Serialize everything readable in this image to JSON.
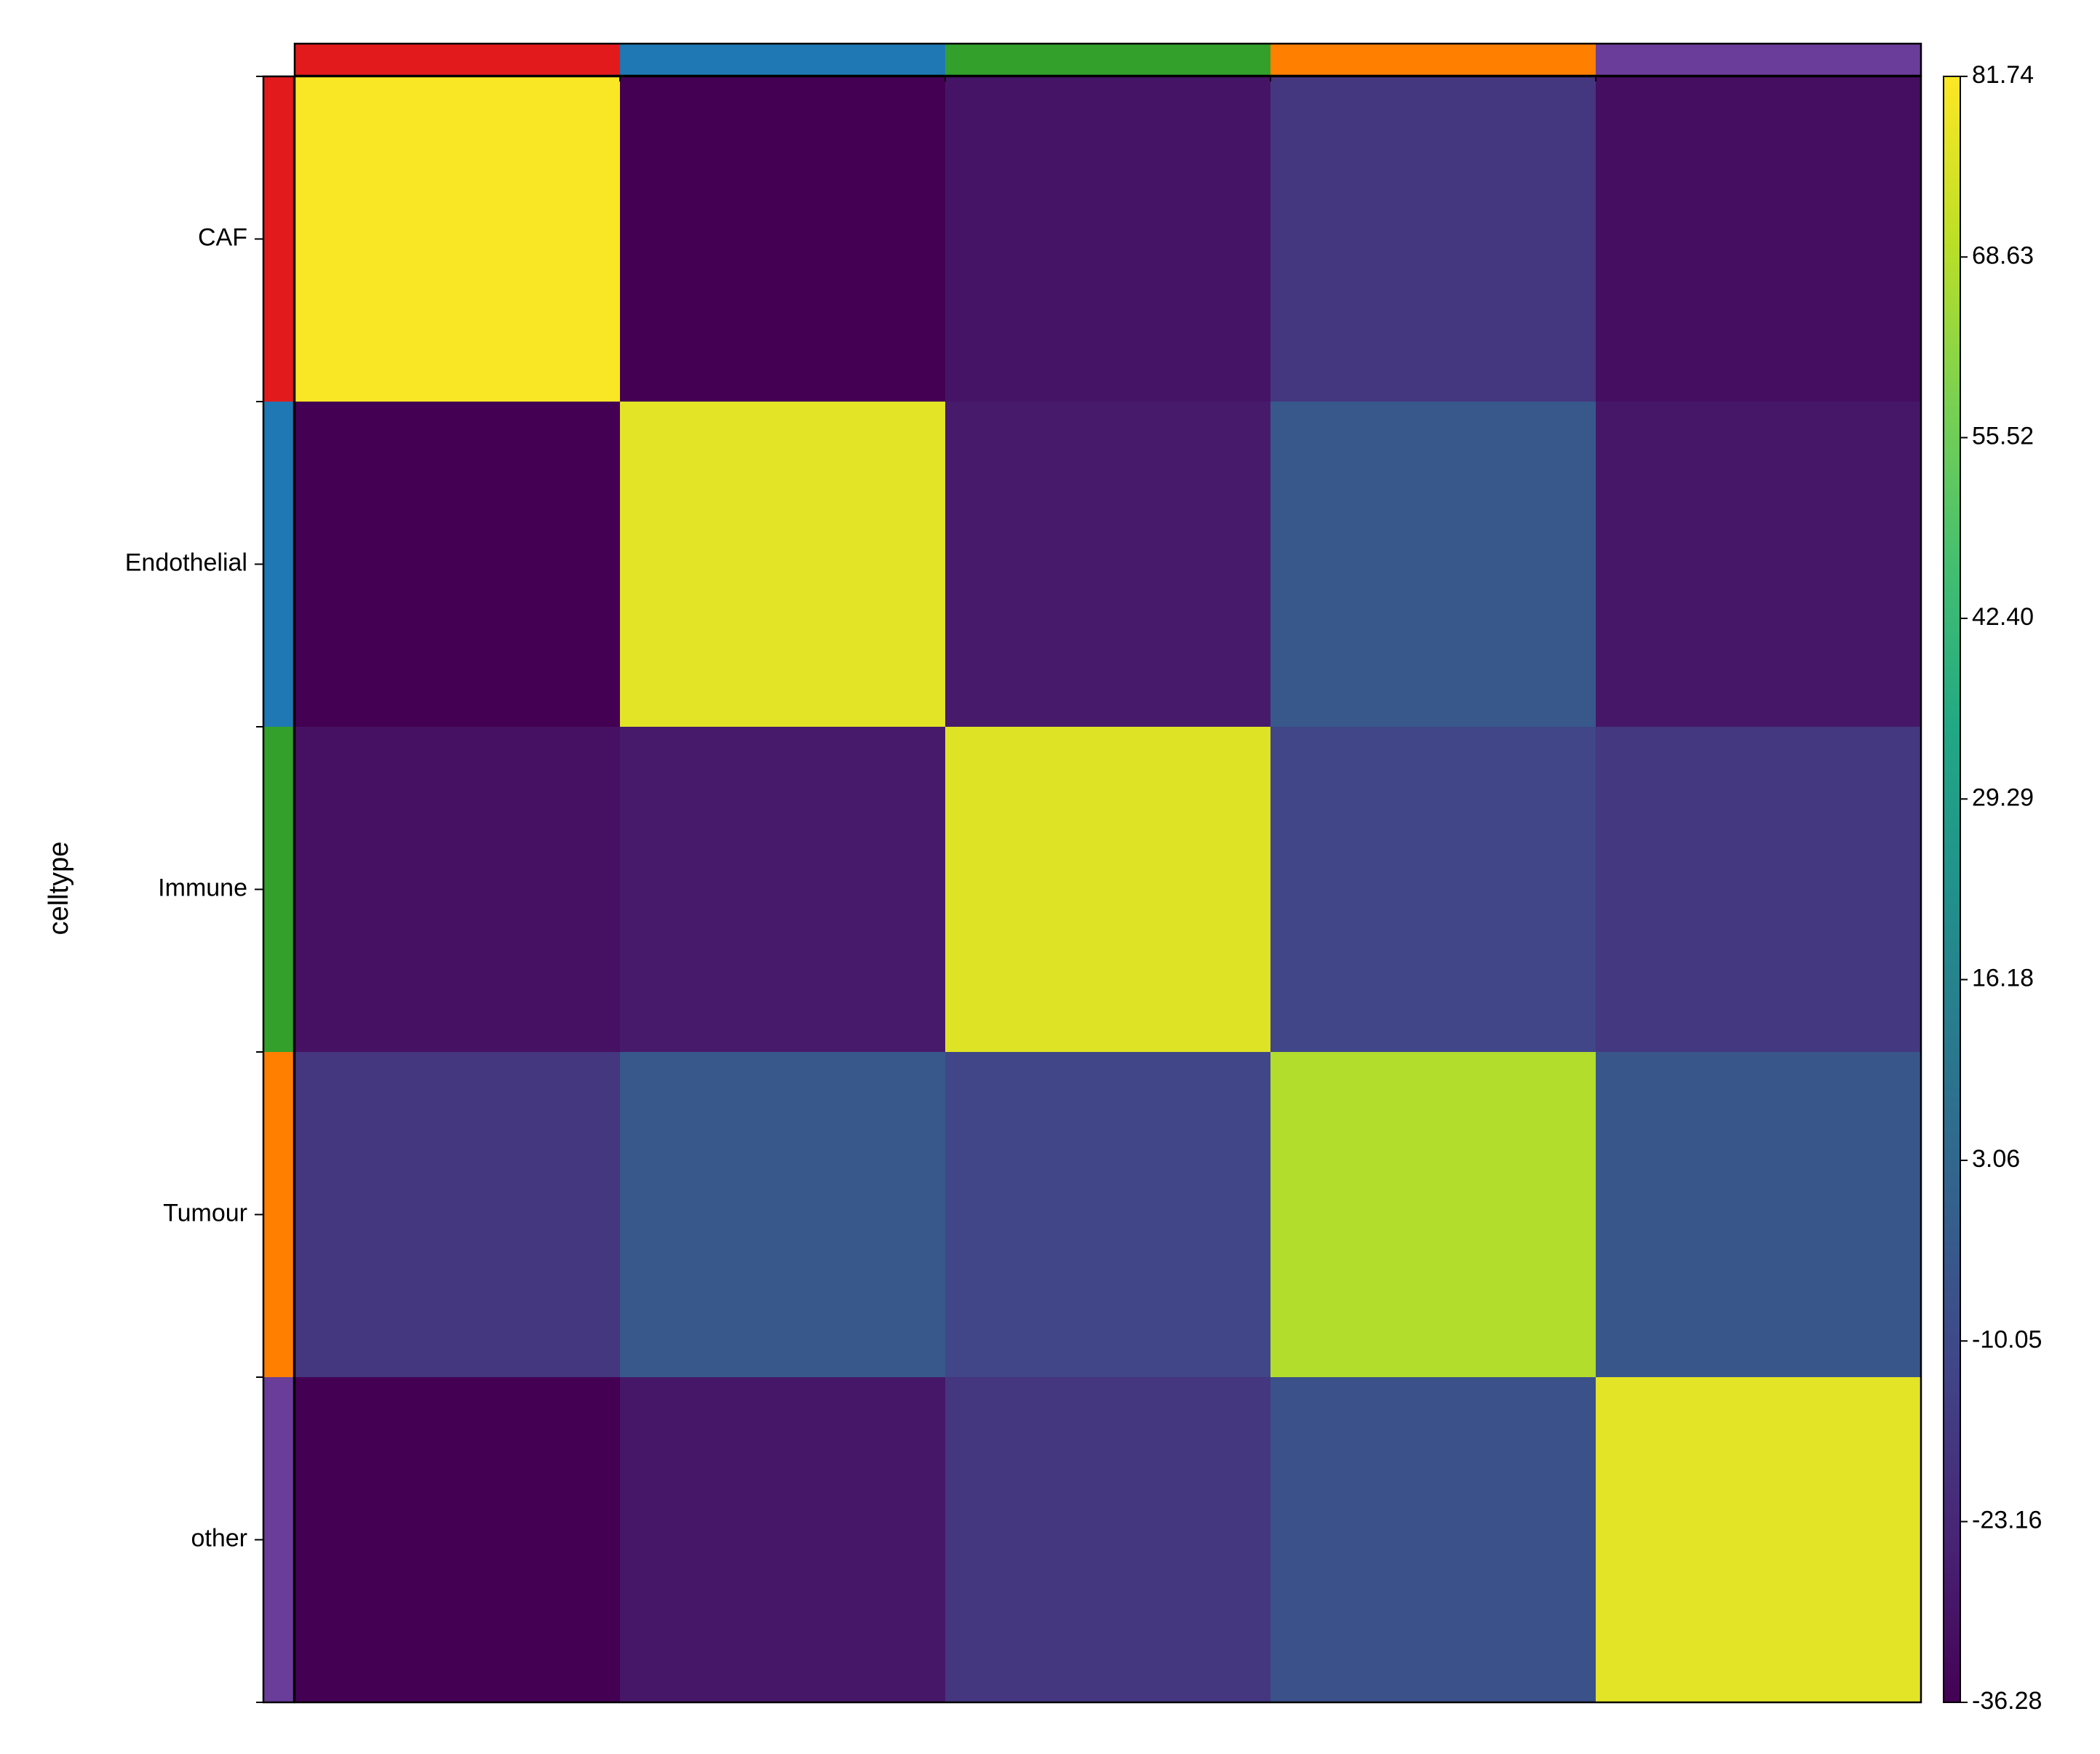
{
  "chart_data": {
    "type": "heatmap",
    "ylabel": "celltype",
    "categories": [
      "CAF",
      "Endothelial",
      "Immune",
      "Tumour",
      "other"
    ],
    "category_colors": [
      "#e31a1c",
      "#1f78b4",
      "#33a02c",
      "#ff7f00",
      "#6a3d9a"
    ],
    "values": [
      [
        81,
        -36.28,
        -30,
        -18,
        -32
      ],
      [
        -36.28,
        77,
        -28,
        -4,
        -29
      ],
      [
        -31,
        -28,
        76,
        -12,
        -17
      ],
      [
        -18,
        -4,
        -12,
        68,
        -5
      ],
      [
        -36.28,
        -29,
        -18,
        -7,
        77
      ]
    ],
    "colormap": "viridis",
    "zlim": [
      -36.28,
      81.74
    ],
    "zticks": [
      81.74,
      68.63,
      55.52,
      {
        "value": 42.4,
        "label": "42.40"
      },
      29.29,
      16.18,
      3.06,
      -10.05,
      -23.16,
      -36.28
    ]
  }
}
